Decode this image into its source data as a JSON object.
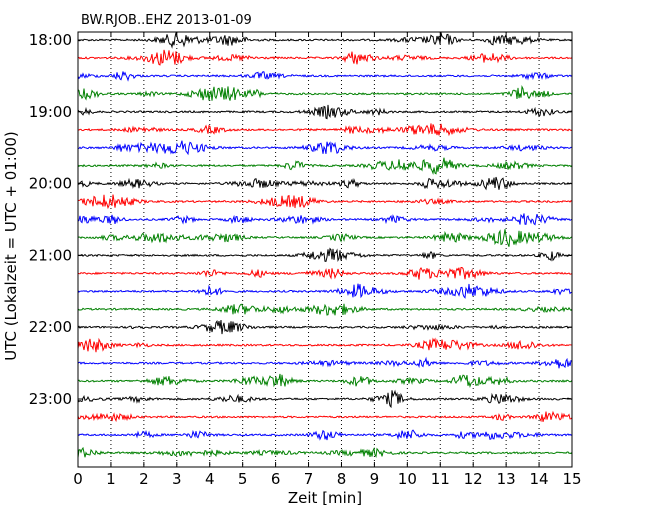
{
  "chart_data": {
    "type": "line",
    "title": "BW.RJOB..EHZ 2013-01-09",
    "xlabel": "Zeit  [min]",
    "ylabel": "UTC (Lokalzeit = UTC + 01:00)",
    "xlim": [
      0,
      15
    ],
    "x_ticks": [
      0,
      1,
      2,
      3,
      4,
      5,
      6,
      7,
      8,
      9,
      10,
      11,
      12,
      13,
      14,
      15
    ],
    "x_tick_labels": [
      "0",
      "1",
      "2",
      "3",
      "4",
      "5",
      "6",
      "7",
      "8",
      "9",
      "10",
      "11",
      "12",
      "13",
      "14",
      "15"
    ],
    "y_tick_labels": [
      "18:00",
      "19:00",
      "20:00",
      "21:00",
      "22:00",
      "23:00"
    ],
    "y_tick_rows": [
      0,
      4,
      8,
      12,
      16,
      20
    ],
    "row_count": 24,
    "row_interval_min": 15,
    "vertical_grid": "dotted",
    "color_cycle": [
      "#000000",
      "#ff0000",
      "#0000ff",
      "#008000"
    ]
  }
}
